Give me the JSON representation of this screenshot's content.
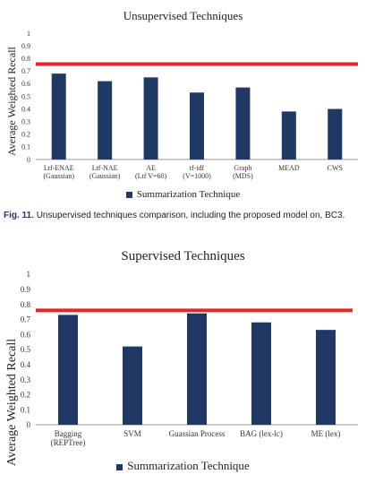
{
  "caption": {
    "label": "Fig. 11.",
    "text": "Unsupervised techniques comparison, including the proposed model on, BC3."
  },
  "colors": {
    "bar": "#1f3864",
    "reference_line": "#e8242a",
    "axis": "#999999"
  },
  "chart_data": [
    {
      "type": "bar",
      "title": "Unsupervised Techniques",
      "ylabel": "Average Weighted Recall",
      "xlabel": "",
      "ylim": [
        0,
        1
      ],
      "yticks": [
        0,
        0.1,
        0.2,
        0.3,
        0.4,
        0.5,
        0.6,
        0.7,
        0.8,
        0.9,
        1
      ],
      "categories": [
        [
          "Ltf-ENAE",
          "(Gaussian)"
        ],
        [
          "Ltf-NAE",
          "(Gaussian)"
        ],
        [
          "AE",
          "(Ltf  V=60)"
        ],
        [
          "tf-idf",
          "(V=1000)"
        ],
        [
          "Graph",
          "(MDS)"
        ],
        [
          "MEAD"
        ],
        [
          "CWS"
        ]
      ],
      "series": [
        {
          "name": "Summarization Technique",
          "values": [
            0.68,
            0.62,
            0.65,
            0.53,
            0.57,
            0.38,
            0.4
          ]
        }
      ],
      "reference_line": 0.755,
      "grid": false,
      "legend": "bottom"
    },
    {
      "type": "bar",
      "title": "Supervised Techniques",
      "ylabel": "Average Weighted Recall",
      "xlabel": "",
      "ylim": [
        0,
        1
      ],
      "yticks": [
        0,
        0.1,
        0.2,
        0.3,
        0.4,
        0.5,
        0.6,
        0.7,
        0.8,
        0.9,
        1
      ],
      "categories": [
        [
          "Bagging",
          "(REPTree)"
        ],
        [
          "SVM"
        ],
        [
          "Guassian Process"
        ],
        [
          "BAG (lex-lc)"
        ],
        [
          "ME (lex)"
        ]
      ],
      "series": [
        {
          "name": "Summarization Technique",
          "values": [
            0.73,
            0.52,
            0.74,
            0.68,
            0.63
          ]
        }
      ],
      "reference_line": 0.76,
      "grid": false,
      "legend": "bottom"
    }
  ]
}
